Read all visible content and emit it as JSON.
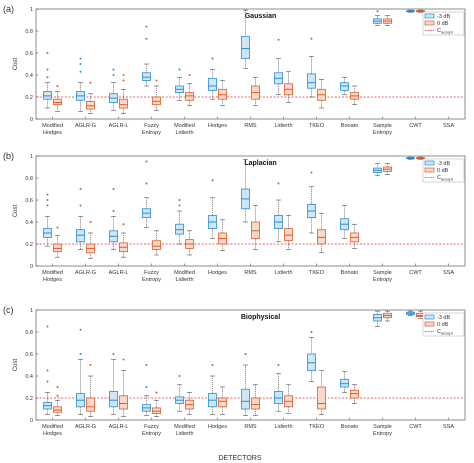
{
  "figure": {
    "xlabel": "DETECTORS"
  },
  "colors": {
    "blue": "#2a8dd4",
    "blue_fill": "#cfe6f7",
    "red": "#e05a2b",
    "red_fill": "#fbd9c9",
    "threshold": "#e03030"
  },
  "legend": {
    "neg3": "-3 dB",
    "zero": "0 dB",
    "c_accept": "C",
    "c_accept_sub": "accept"
  },
  "chart_data": [
    {
      "type": "box",
      "panel_label": "(a)",
      "title": "Gaussian",
      "ylabel": "Cost",
      "ylim": [
        0,
        1
      ],
      "yticks": [
        "0",
        "0.2",
        "0.4",
        "0.6",
        "0.8",
        "1"
      ],
      "threshold": 0.2,
      "categories": [
        [
          "Modified",
          "Hodges"
        ],
        [
          "AGLR-G"
        ],
        [
          "AGLR-L"
        ],
        [
          "Fuzzy",
          "Entropy"
        ],
        [
          "Modified",
          "Lidierth"
        ],
        [
          "Hodges"
        ],
        [
          "RMS"
        ],
        [
          "Lidierth"
        ],
        [
          "TKEO"
        ],
        [
          "Bonato"
        ],
        [
          "Sample",
          "Entropy"
        ],
        [
          "CWT"
        ],
        [
          "SSA"
        ]
      ],
      "series": [
        {
          "name": "-3 dB",
          "boxes": [
            [
              0.1,
              0.18,
              0.21,
              0.25,
              0.33,
              [
                0.38,
                0.45,
                0.6
              ]
            ],
            [
              0.07,
              0.17,
              0.21,
              0.25,
              0.33,
              [
                0.43,
                0.5,
                0.55
              ]
            ],
            [
              0.08,
              0.15,
              0.19,
              0.23,
              0.33,
              [
                0.4,
                0.45
              ]
            ],
            [
              0.3,
              0.35,
              0.38,
              0.42,
              0.5,
              [
                0.73,
                0.84
              ]
            ],
            [
              0.17,
              0.24,
              0.27,
              0.3,
              0.38,
              [
                0.45
              ]
            ],
            [
              0.18,
              0.26,
              0.3,
              0.37,
              0.45,
              [
                0.55
              ]
            ],
            [
              0.46,
              0.55,
              0.64,
              0.75,
              0.99,
              []
            ],
            [
              0.22,
              0.32,
              0.37,
              0.42,
              0.55,
              [
                0.72
              ]
            ],
            [
              0.2,
              0.28,
              0.33,
              0.41,
              0.57,
              [
                0.73
              ]
            ],
            [
              0.22,
              0.26,
              0.3,
              0.33,
              0.38,
              []
            ],
            [
              0.85,
              0.87,
              0.89,
              0.91,
              0.94,
              [
                0.98
              ]
            ],
            [
              0.97,
              0.975,
              0.98,
              0.985,
              0.99,
              []
            ],
            [
              0.95,
              0.955,
              0.96,
              0.965,
              0.97,
              []
            ]
          ]
        },
        {
          "name": "0 dB",
          "boxes": [
            [
              0.07,
              0.13,
              0.15,
              0.18,
              0.25,
              [
                0.3
              ]
            ],
            [
              0.05,
              0.09,
              0.12,
              0.16,
              0.23,
              [
                0.33
              ]
            ],
            [
              0.05,
              0.1,
              0.13,
              0.18,
              0.27,
              [
                0.35,
                0.4
              ]
            ],
            [
              0.08,
              0.13,
              0.16,
              0.2,
              0.3,
              [
                0.35
              ]
            ],
            [
              0.12,
              0.17,
              0.21,
              0.24,
              0.32,
              [
                0.4
              ]
            ],
            [
              0.12,
              0.18,
              0.22,
              0.27,
              0.35,
              []
            ],
            [
              0.12,
              0.18,
              0.24,
              0.3,
              0.38,
              []
            ],
            [
              0.15,
              0.22,
              0.27,
              0.32,
              0.43,
              []
            ],
            [
              0.1,
              0.17,
              0.22,
              0.27,
              0.36,
              []
            ],
            [
              0.13,
              0.18,
              0.21,
              0.24,
              0.3,
              []
            ],
            [
              0.85,
              0.87,
              0.89,
              0.91,
              0.94,
              []
            ],
            [
              0.97,
              0.975,
              0.98,
              0.985,
              0.99,
              []
            ],
            [
              0.95,
              0.955,
              0.96,
              0.965,
              0.97,
              []
            ]
          ]
        }
      ]
    },
    {
      "type": "box",
      "panel_label": "(b)",
      "title": "Laplacian",
      "ylabel": "Cost",
      "ylim": [
        0,
        1
      ],
      "yticks": [
        "0",
        "0.2",
        "0.4",
        "0.6",
        "0.8",
        "1"
      ],
      "threshold": 0.2,
      "categories": [
        [
          "Modified",
          "Hodges"
        ],
        [
          "AGLR-G"
        ],
        [
          "AGLR-L"
        ],
        [
          "Fuzzy",
          "Entropy"
        ],
        [
          "Modified",
          "Lidierth"
        ],
        [
          "Hodges"
        ],
        [
          "RMS"
        ],
        [
          "Lidierth"
        ],
        [
          "TKEO"
        ],
        [
          "Bonato"
        ],
        [
          "Sample",
          "Entropy"
        ],
        [
          "CWT"
        ],
        [
          "SSA"
        ]
      ],
      "series": [
        {
          "name": "-3 dB",
          "boxes": [
            [
              0.18,
              0.26,
              0.3,
              0.34,
              0.45,
              [
                0.55,
                0.6,
                0.65
              ]
            ],
            [
              0.15,
              0.22,
              0.28,
              0.33,
              0.45,
              [
                0.55,
                0.7
              ]
            ],
            [
              0.15,
              0.22,
              0.27,
              0.32,
              0.45,
              [
                0.5,
                0.7
              ]
            ],
            [
              0.35,
              0.44,
              0.48,
              0.52,
              0.62,
              [
                0.75,
                0.95
              ]
            ],
            [
              0.2,
              0.29,
              0.33,
              0.38,
              0.5,
              [
                0.55,
                0.6
              ]
            ],
            [
              0.25,
              0.34,
              0.4,
              0.46,
              0.62,
              [
                0.78
              ]
            ],
            [
              0.4,
              0.52,
              0.61,
              0.7,
              0.97,
              []
            ],
            [
              0.22,
              0.34,
              0.4,
              0.46,
              0.6,
              [
                0.75
              ]
            ],
            [
              0.3,
              0.44,
              0.5,
              0.56,
              0.72,
              [
                0.85
              ]
            ],
            [
              0.25,
              0.33,
              0.38,
              0.43,
              0.55,
              []
            ],
            [
              0.82,
              0.85,
              0.87,
              0.89,
              0.93,
              []
            ],
            [
              0.97,
              0.975,
              0.98,
              0.985,
              0.99,
              []
            ],
            [
              0.95,
              0.955,
              0.96,
              0.965,
              0.97,
              []
            ]
          ]
        },
        {
          "name": "0 dB",
          "boxes": [
            [
              0.08,
              0.13,
              0.16,
              0.2,
              0.28,
              [
                0.35
              ]
            ],
            [
              0.07,
              0.12,
              0.16,
              0.2,
              0.3,
              [
                0.4
              ]
            ],
            [
              0.08,
              0.13,
              0.17,
              0.21,
              0.3,
              [
                0.38
              ]
            ],
            [
              0.1,
              0.15,
              0.18,
              0.23,
              0.32,
              []
            ],
            [
              0.1,
              0.16,
              0.2,
              0.24,
              0.32,
              []
            ],
            [
              0.14,
              0.2,
              0.25,
              0.3,
              0.42,
              []
            ],
            [
              0.15,
              0.25,
              0.32,
              0.4,
              0.55,
              []
            ],
            [
              0.15,
              0.23,
              0.28,
              0.34,
              0.46,
              []
            ],
            [
              0.12,
              0.2,
              0.26,
              0.33,
              0.48,
              []
            ],
            [
              0.16,
              0.22,
              0.26,
              0.3,
              0.38,
              []
            ],
            [
              0.83,
              0.86,
              0.88,
              0.9,
              0.93,
              []
            ],
            [
              0.97,
              0.975,
              0.98,
              0.985,
              0.99,
              []
            ],
            [
              0.95,
              0.955,
              0.96,
              0.965,
              0.97,
              []
            ]
          ]
        }
      ]
    },
    {
      "type": "box",
      "panel_label": "(c)",
      "title": "Biophysical",
      "ylabel": "Cost",
      "ylim": [
        0,
        1
      ],
      "yticks": [
        "0",
        "0.2",
        "0.4",
        "0.6",
        "0.8",
        "1"
      ],
      "threshold": 0.2,
      "categories": [
        [
          "Modified",
          "Hodges"
        ],
        [
          "AGLR-G"
        ],
        [
          "AGLR-L"
        ],
        [
          "Fuzzy",
          "Entropy"
        ],
        [
          "Modified",
          "Lidierth"
        ],
        [
          "Hodges"
        ],
        [
          "RMS"
        ],
        [
          "Lidierth"
        ],
        [
          "TKEO"
        ],
        [
          "Bonato"
        ],
        [
          "Sample",
          "Entropy"
        ],
        [
          "CWT"
        ],
        [
          "SSA"
        ]
      ],
      "series": [
        {
          "name": "-3 dB",
          "boxes": [
            [
              0.05,
              0.1,
              0.13,
              0.16,
              0.25,
              [
                0.35,
                0.45,
                0.85
              ]
            ],
            [
              0.05,
              0.12,
              0.18,
              0.24,
              0.55,
              [
                0.6,
                0.82
              ]
            ],
            [
              0.05,
              0.12,
              0.18,
              0.26,
              0.55,
              [
                0.6
              ]
            ],
            [
              0.04,
              0.08,
              0.11,
              0.14,
              0.22,
              [
                0.3,
                0.5
              ]
            ],
            [
              0.08,
              0.15,
              0.18,
              0.21,
              0.32,
              [
                0.4
              ]
            ],
            [
              0.05,
              0.12,
              0.18,
              0.24,
              0.4,
              [
                0.5
              ]
            ],
            [
              0.04,
              0.1,
              0.17,
              0.28,
              0.5,
              [
                0.6
              ]
            ],
            [
              0.08,
              0.15,
              0.2,
              0.26,
              0.42,
              [
                0.5
              ]
            ],
            [
              0.35,
              0.45,
              0.52,
              0.6,
              0.75,
              [
                0.8
              ]
            ],
            [
              0.25,
              0.3,
              0.33,
              0.37,
              0.44,
              []
            ],
            [
              0.85,
              0.9,
              0.93,
              0.96,
              0.99,
              []
            ],
            [
              0.95,
              0.96,
              0.97,
              0.98,
              0.99,
              []
            ],
            [
              0.93,
              0.94,
              0.95,
              0.96,
              0.97,
              []
            ]
          ]
        },
        {
          "name": "0 dB",
          "boxes": [
            [
              0.04,
              0.07,
              0.09,
              0.12,
              0.18,
              [
                0.22,
                0.3
              ]
            ],
            [
              0.03,
              0.08,
              0.12,
              0.2,
              0.4,
              [
                0.5
              ]
            ],
            [
              0.03,
              0.1,
              0.15,
              0.22,
              0.45,
              [
                0.55
              ]
            ],
            [
              0.03,
              0.06,
              0.08,
              0.11,
              0.18,
              [
                0.25
              ]
            ],
            [
              0.05,
              0.1,
              0.14,
              0.18,
              0.25,
              []
            ],
            [
              0.05,
              0.12,
              0.17,
              0.2,
              0.3,
              []
            ],
            [
              0.04,
              0.1,
              0.14,
              0.2,
              0.32,
              []
            ],
            [
              0.06,
              0.12,
              0.17,
              0.22,
              0.32,
              []
            ],
            [
              0.05,
              0.1,
              0.15,
              0.3,
              0.45,
              []
            ],
            [
              0.15,
              0.2,
              0.24,
              0.27,
              0.32,
              []
            ],
            [
              0.9,
              0.93,
              0.95,
              0.97,
              0.99,
              []
            ],
            [
              0.92,
              0.94,
              0.95,
              0.97,
              0.99,
              []
            ],
            [
              0.93,
              0.94,
              0.95,
              0.96,
              0.97,
              []
            ]
          ]
        }
      ]
    }
  ]
}
